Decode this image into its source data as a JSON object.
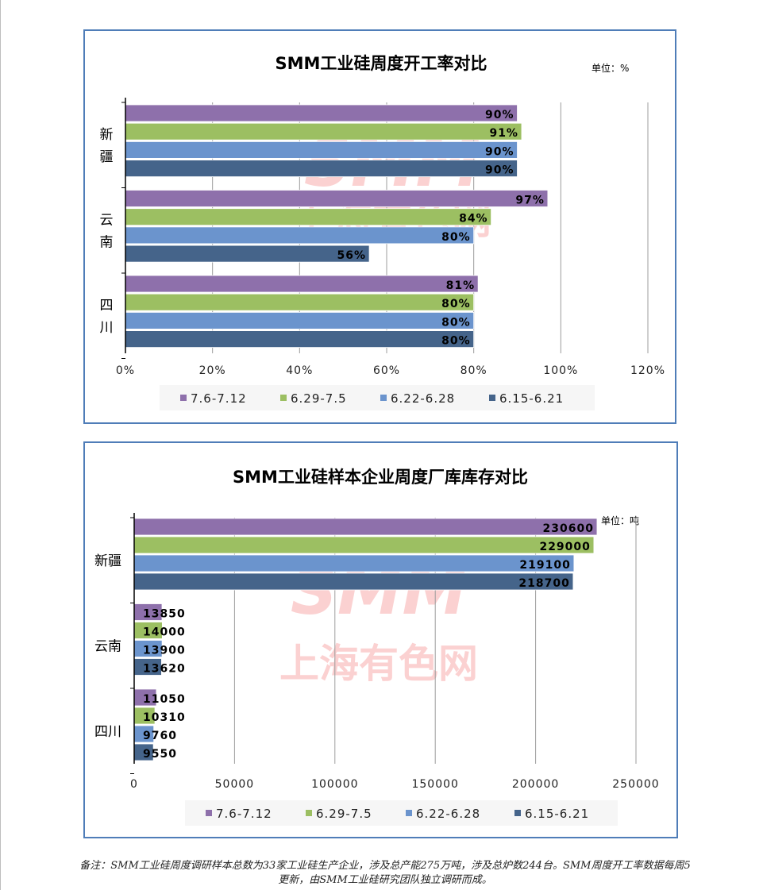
{
  "legend": [
    {
      "label": "7.6-7.12",
      "color": "#8e70ab"
    },
    {
      "label": "6.29-7.5",
      "color": "#9cbf62"
    },
    {
      "label": "6.22-6.28",
      "color": "#6b94cd"
    },
    {
      "label": "6.15-6.21",
      "color": "#45648a"
    }
  ],
  "watermark": {
    "brand": "SMM",
    "name": "上海有色网",
    "color": "#f05a5a"
  },
  "note": "备注：SMM工业硅周度调研样本总数为33家工业硅生产企业，涉及总产能275万吨，涉及总炉数244台。SMM周度开工率数据每周5更新，由SMM工业硅研究团队独立调研而成。",
  "chart_data": [
    {
      "type": "bar",
      "orientation": "horizontal",
      "title": "SMM工业硅周度开工率对比",
      "unit": "单位：%",
      "categories": [
        "新疆",
        "云南",
        "四川"
      ],
      "category_labels": [
        "新\n疆",
        "云\n南",
        "四\n川"
      ],
      "series": [
        {
          "name": "7.6-7.12",
          "values": [
            90,
            97,
            81
          ]
        },
        {
          "name": "6.29-7.5",
          "values": [
            91,
            84,
            80
          ]
        },
        {
          "name": "6.22-6.28",
          "values": [
            90,
            80,
            80
          ]
        },
        {
          "name": "6.15-6.21",
          "values": [
            90,
            56,
            80
          ]
        }
      ],
      "value_format": "percent",
      "xlim": [
        0,
        120
      ],
      "xticks": [
        "0%",
        "20%",
        "40%",
        "60%",
        "80%",
        "100%",
        "120%"
      ],
      "grid": true,
      "legend_position": "bottom"
    },
    {
      "type": "bar",
      "orientation": "horizontal",
      "title": "SMM工业硅样本企业周度厂库库存对比",
      "unit": "单位：吨",
      "categories": [
        "新疆",
        "云南",
        "四川"
      ],
      "category_labels": [
        "新疆",
        "云南",
        "四川"
      ],
      "series": [
        {
          "name": "7.6-7.12",
          "values": [
            230600,
            13850,
            11050
          ]
        },
        {
          "name": "6.29-7.5",
          "values": [
            229000,
            14000,
            10310
          ]
        },
        {
          "name": "6.22-6.28",
          "values": [
            219100,
            13900,
            9760
          ]
        },
        {
          "name": "6.15-6.21",
          "values": [
            218700,
            13620,
            9550
          ]
        }
      ],
      "value_format": "integer",
      "xlim": [
        0,
        250000
      ],
      "xticks": [
        "0",
        "50000",
        "100000",
        "150000",
        "200000",
        "250000"
      ],
      "grid": true,
      "legend_position": "bottom"
    }
  ]
}
